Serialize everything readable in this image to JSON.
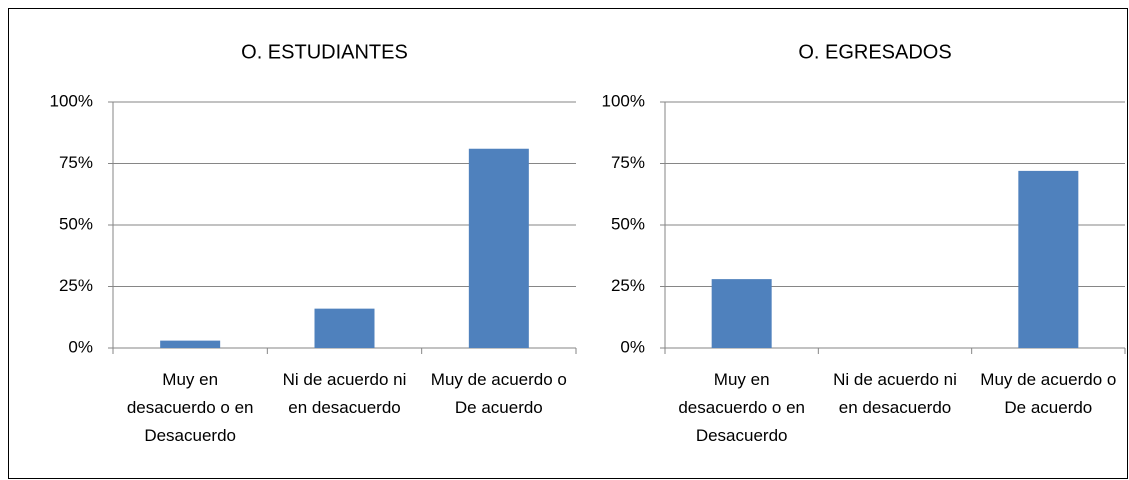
{
  "chart_data": [
    {
      "type": "bar",
      "title": "O. ESTUDIANTES",
      "categories": [
        "Muy en desacuerdo o en Desacuerdo",
        "Ni de acuerdo ni en desacuerdo",
        "Muy de acuerdo o De acuerdo"
      ],
      "values": [
        3,
        16,
        81
      ],
      "color": "#4f81bd",
      "ylim": [
        0,
        100
      ],
      "yticks": [
        {
          "value": 0,
          "label": "0%"
        },
        {
          "value": 25,
          "label": "25%"
        },
        {
          "value": 50,
          "label": "50%"
        },
        {
          "value": 75,
          "label": "75%"
        },
        {
          "value": 100,
          "label": "100%"
        }
      ],
      "grid": true
    },
    {
      "type": "bar",
      "title": "O. EGRESADOS",
      "categories": [
        "Muy en desacuerdo o en Desacuerdo",
        "Ni de acuerdo ni en desacuerdo",
        "Muy de acuerdo o De acuerdo"
      ],
      "values": [
        28,
        0,
        72
      ],
      "color": "#4f81bd",
      "ylim": [
        0,
        100
      ],
      "yticks": [
        {
          "value": 0,
          "label": "0%"
        },
        {
          "value": 25,
          "label": "25%"
        },
        {
          "value": 50,
          "label": "50%"
        },
        {
          "value": 75,
          "label": "75%"
        },
        {
          "value": 100,
          "label": "100%"
        }
      ],
      "grid": true
    }
  ]
}
